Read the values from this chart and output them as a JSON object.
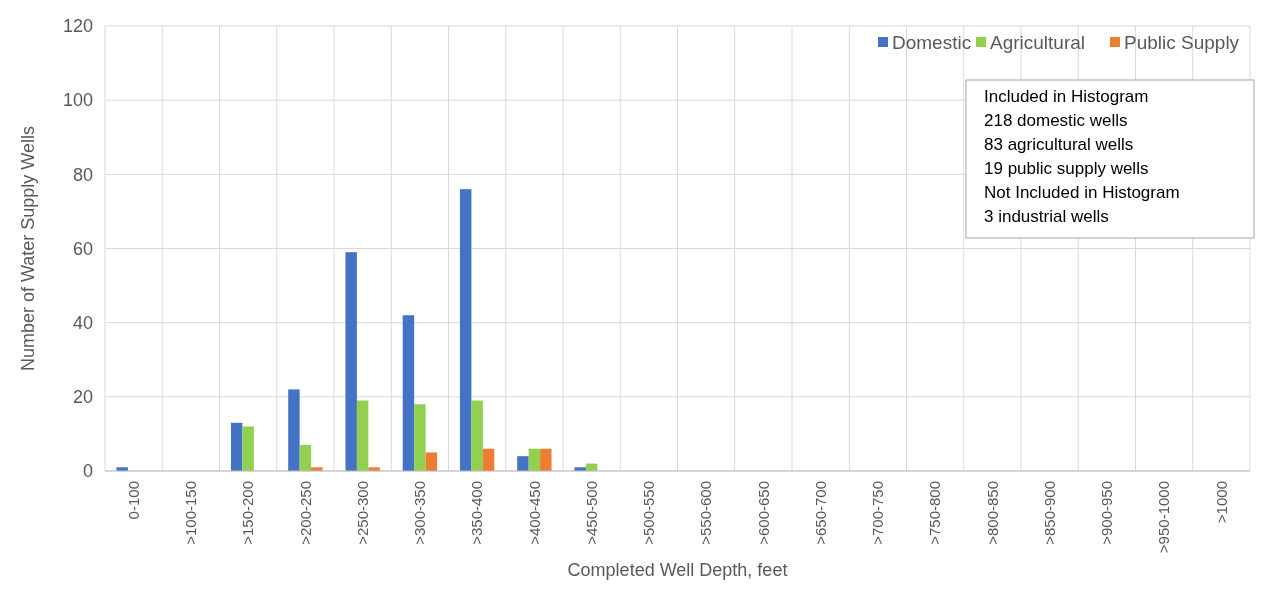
{
  "chart_data": {
    "type": "bar",
    "xlabel": "Completed Well Depth, feet",
    "ylabel": "Number of Water Supply Wells",
    "categories": [
      "0-100",
      ">100-150",
      ">150-200",
      ">200-250",
      ">250-300",
      ">300-350",
      ">350-400",
      ">400-450",
      ">450-500",
      ">500-550",
      ">550-600",
      ">600-650",
      ">650-700",
      ">700-750",
      ">750-800",
      ">800-850",
      ">850-900",
      ">900-950",
      ">950-1000",
      ">1000"
    ],
    "series": [
      {
        "name": "Domestic",
        "color": "#4472c4",
        "values": [
          1,
          0,
          13,
          22,
          59,
          42,
          76,
          4,
          1,
          0,
          0,
          0,
          0,
          0,
          0,
          0,
          0,
          0,
          0,
          0
        ]
      },
      {
        "name": "Agricultural",
        "color": "#92d050",
        "values": [
          0,
          0,
          12,
          7,
          19,
          18,
          19,
          6,
          2,
          0,
          0,
          0,
          0,
          0,
          0,
          0,
          0,
          0,
          0,
          0
        ]
      },
      {
        "name": "Public Supply",
        "color": "#ed7d31",
        "values": [
          0,
          0,
          0,
          1,
          1,
          5,
          6,
          6,
          0,
          0,
          0,
          0,
          0,
          0,
          0,
          0,
          0,
          0,
          0,
          0
        ]
      }
    ],
    "ylim": [
      0,
      120
    ],
    "yticks": [
      0,
      20,
      40,
      60,
      80,
      100,
      120
    ],
    "grid": true,
    "legend": "top right",
    "annotations": [
      "Included  in Histogram",
      "218 domestic wells",
      "83 agricultural  wells",
      "19 public supply wells",
      "Not Included  in Histogram",
      "3 industrial  wells"
    ]
  }
}
